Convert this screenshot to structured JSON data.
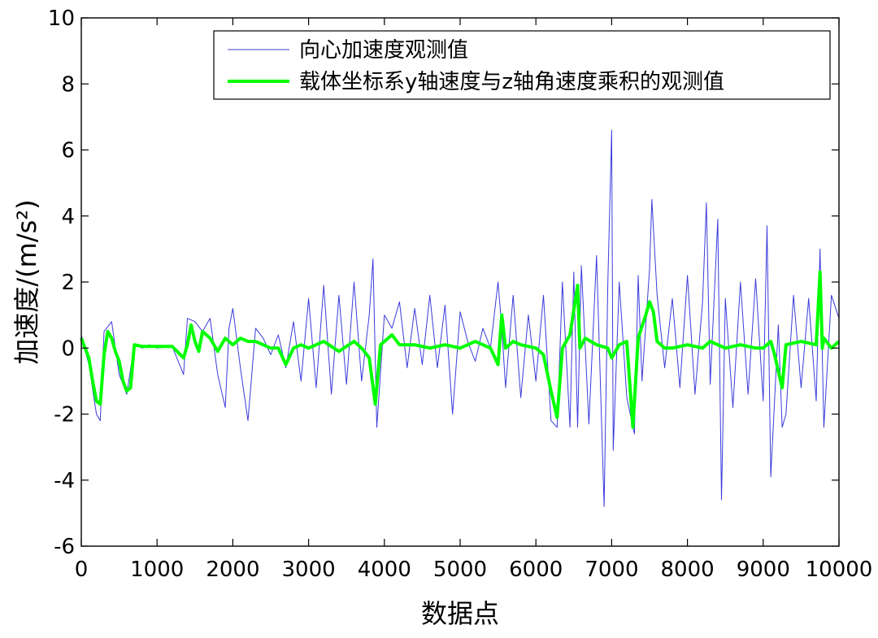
{
  "chart_data": {
    "type": "line",
    "xlabel": "数据点",
    "ylabel": "加速度/(m/s²)",
    "xlim": [
      0,
      10000
    ],
    "ylim": [
      -6,
      10
    ],
    "x_ticks": [
      0,
      1000,
      2000,
      3000,
      4000,
      5000,
      6000,
      7000,
      8000,
      9000,
      10000
    ],
    "y_ticks": [
      -6,
      -4,
      -2,
      0,
      2,
      4,
      6,
      8,
      10
    ],
    "grid": false,
    "legend_position": "top-right",
    "series": [
      {
        "name": "向心加速度观测值",
        "color": "#3b3bdc",
        "style": "thin line",
        "x": [
          0,
          100,
          200,
          250,
          300,
          400,
          500,
          600,
          700,
          800,
          900,
          1000,
          1200,
          1350,
          1400,
          1500,
          1600,
          1700,
          1800,
          1900,
          1950,
          2000,
          2100,
          2200,
          2300,
          2400,
          2500,
          2600,
          2700,
          2800,
          2900,
          3000,
          3100,
          3200,
          3300,
          3400,
          3500,
          3600,
          3700,
          3800,
          3850,
          3900,
          4000,
          4100,
          4200,
          4300,
          4400,
          4500,
          4600,
          4700,
          4800,
          4900,
          5000,
          5100,
          5200,
          5300,
          5400,
          5500,
          5550,
          5600,
          5700,
          5800,
          5900,
          6000,
          6100,
          6200,
          6280,
          6350,
          6450,
          6500,
          6550,
          6600,
          6700,
          6800,
          6900,
          6950,
          7000,
          7020,
          7100,
          7200,
          7300,
          7350,
          7400,
          7500,
          7530,
          7600,
          7700,
          7800,
          7900,
          8000,
          8100,
          8200,
          8250,
          8300,
          8400,
          8450,
          8500,
          8600,
          8700,
          8800,
          8900,
          9000,
          9050,
          9100,
          9200,
          9250,
          9300,
          9400,
          9500,
          9600,
          9700,
          9750,
          9800,
          9900,
          10000
        ],
        "y": [
          0.4,
          -0.5,
          -2.0,
          -2.2,
          0.5,
          0.8,
          -0.8,
          -1.4,
          0.1,
          0.0,
          0.1,
          0.0,
          0.05,
          -0.8,
          0.9,
          0.8,
          0.5,
          0.9,
          -0.8,
          -1.8,
          0.6,
          1.2,
          -0.6,
          -2.2,
          0.6,
          0.3,
          -0.2,
          0.4,
          -0.6,
          0.8,
          -1.0,
          1.5,
          -1.2,
          1.9,
          -1.4,
          1.6,
          -1.1,
          2.0,
          -1.0,
          1.0,
          2.7,
          -2.4,
          1.0,
          0.6,
          1.4,
          -0.6,
          1.2,
          -0.5,
          1.6,
          -0.6,
          1.3,
          -2.0,
          1.1,
          0.2,
          -0.4,
          0.6,
          0.0,
          2.0,
          0.6,
          -1.2,
          1.6,
          -1.5,
          1.0,
          -1.0,
          1.6,
          -2.2,
          -2.4,
          2.0,
          -2.4,
          2.3,
          -2.4,
          2.5,
          -2.3,
          2.8,
          -4.8,
          2.0,
          6.6,
          -3.1,
          2.0,
          -1.5,
          -2.6,
          2.2,
          -1.0,
          2.4,
          4.5,
          1.6,
          -0.6,
          1.5,
          -1.2,
          2.2,
          -1.4,
          1.4,
          4.4,
          -1.1,
          3.9,
          -4.6,
          1.5,
          -1.8,
          2.0,
          -1.4,
          2.1,
          -1.6,
          3.7,
          -3.9,
          0.7,
          -2.4,
          -2.0,
          1.6,
          -1.2,
          1.5,
          -1.6,
          3.0,
          -2.4,
          1.6,
          0.9
        ]
      },
      {
        "name": "载体坐标系y轴速度与z轴角速度乘积的观测值",
        "color": "#00ff00",
        "style": "thick line",
        "x": [
          0,
          100,
          150,
          200,
          250,
          300,
          350,
          400,
          450,
          500,
          550,
          600,
          650,
          700,
          800,
          1000,
          1200,
          1350,
          1400,
          1450,
          1500,
          1550,
          1600,
          1700,
          1800,
          1900,
          2000,
          2100,
          2200,
          2300,
          2400,
          2500,
          2600,
          2700,
          2800,
          2900,
          3000,
          3200,
          3400,
          3600,
          3700,
          3800,
          3880,
          3950,
          4000,
          4100,
          4200,
          4400,
          4600,
          4800,
          5000,
          5200,
          5400,
          5500,
          5550,
          5600,
          5700,
          5800,
          6000,
          6100,
          6200,
          6280,
          6350,
          6450,
          6550,
          6580,
          6650,
          6800,
          6950,
          7000,
          7100,
          7200,
          7280,
          7350,
          7450,
          7500,
          7550,
          7600,
          7700,
          7800,
          8000,
          8200,
          8300,
          8500,
          8700,
          8900,
          9000,
          9100,
          9150,
          9250,
          9300,
          9500,
          9700,
          9750,
          9780,
          9800,
          9900,
          10000
        ],
        "y": [
          0.3,
          -0.3,
          -1.0,
          -1.6,
          -1.7,
          -0.2,
          0.5,
          0.3,
          -0.1,
          -0.4,
          -1.0,
          -1.3,
          -1.2,
          0.1,
          0.05,
          0.05,
          0.05,
          -0.3,
          0.1,
          0.7,
          0.2,
          -0.1,
          0.5,
          0.3,
          -0.1,
          0.3,
          0.1,
          0.3,
          0.2,
          0.2,
          0.1,
          0.0,
          0.0,
          -0.5,
          0.0,
          0.1,
          0.0,
          0.2,
          -0.1,
          0.2,
          0.0,
          -0.3,
          -1.7,
          0.1,
          0.2,
          0.4,
          0.1,
          0.1,
          0.0,
          0.1,
          0.0,
          0.2,
          0.0,
          -0.5,
          1.0,
          0.0,
          0.2,
          0.1,
          0.0,
          -0.2,
          -1.3,
          -2.1,
          0.0,
          0.4,
          1.9,
          0.0,
          0.3,
          0.1,
          0.0,
          -0.3,
          0.1,
          0.2,
          -2.4,
          0.3,
          1.0,
          1.4,
          1.1,
          0.2,
          0.0,
          0.0,
          0.1,
          0.0,
          0.2,
          0.0,
          0.1,
          0.0,
          0.0,
          0.2,
          -0.2,
          -1.2,
          0.1,
          0.2,
          0.1,
          2.3,
          0.0,
          0.3,
          0.0,
          0.2
        ]
      }
    ]
  }
}
